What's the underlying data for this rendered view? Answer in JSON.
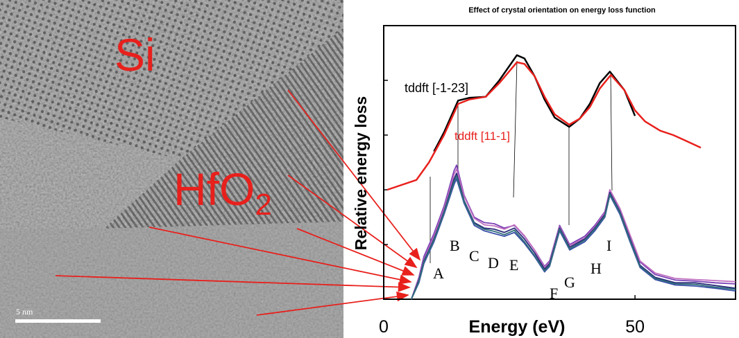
{
  "image": {
    "si_label": "Si",
    "hfo2_label": {
      "base": "HfO",
      "subscript": "2"
    },
    "scale_bar": "5 nm"
  },
  "chart_data": {
    "type": "line",
    "title": "Effect of crystal orientation on energy loss function",
    "x_label": "Energy (eV)",
    "y_label": "Relative energy loss",
    "xlim": [
      0,
      70
    ],
    "xticks": [
      0,
      50
    ],
    "ylim": [
      0,
      5
    ],
    "yticks": [
      1,
      2,
      3,
      4
    ],
    "annotations": [
      "A",
      "B",
      "C",
      "D",
      "E",
      "F",
      "G",
      "H",
      "I"
    ],
    "series": [
      {
        "name": "tddft [-1-23]",
        "color": "#000000",
        "x": [
          10,
          12,
          14.8,
          17,
          20.3,
          23,
          26.5,
          28,
          30,
          32,
          34,
          36.9,
          39,
          41,
          43,
          45,
          47.9,
          50
        ],
        "values": [
          2.7,
          3.05,
          3.63,
          3.68,
          3.7,
          4.0,
          4.46,
          4.4,
          4.08,
          3.65,
          3.32,
          3.15,
          3.3,
          3.57,
          3.95,
          4.16,
          3.82,
          3.35
        ]
      },
      {
        "name": "tddft [11-1]",
        "color": "#e8201c",
        "x": [
          0.7,
          6.5,
          9,
          12,
          14.8,
          17,
          20.3,
          23,
          26.5,
          28,
          30,
          32,
          34,
          36.9,
          39,
          41,
          43,
          45.2,
          47.9,
          50,
          52,
          55,
          57.6,
          60,
          63.1
        ],
        "values": [
          2.0,
          2.18,
          2.5,
          3.0,
          3.57,
          3.65,
          3.7,
          3.95,
          4.33,
          4.3,
          4.08,
          3.7,
          3.38,
          3.19,
          3.3,
          3.51,
          3.85,
          4.1,
          3.82,
          3.45,
          3.25,
          3.08,
          3.0,
          2.9,
          2.77
        ]
      },
      {
        "color": "#7a3fb5",
        "x": [
          5.5,
          7,
          8,
          10,
          12,
          14,
          14.5,
          16,
          18,
          20,
          22,
          24,
          26,
          28,
          30,
          32,
          33,
          35,
          37,
          40,
          42,
          44,
          45,
          47,
          49,
          51,
          54,
          58,
          62,
          66,
          70
        ],
        "values": [
          0,
          0.4,
          0.78,
          1.2,
          1.7,
          2.35,
          2.45,
          1.9,
          1.5,
          1.4,
          1.38,
          1.3,
          1.35,
          1.15,
          0.9,
          0.6,
          0.7,
          1.35,
          1.0,
          1.15,
          1.35,
          1.6,
          2.0,
          1.65,
          1.15,
          0.68,
          0.45,
          0.35,
          0.33,
          0.3,
          0.28
        ]
      },
      {
        "color": "#3b4fa8",
        "x": [
          5.5,
          7,
          8,
          10,
          12,
          14,
          14.5,
          16,
          18,
          20,
          22,
          24,
          26,
          28,
          30,
          32,
          33,
          35,
          37,
          40,
          42,
          44,
          45,
          47,
          49,
          51,
          54,
          58,
          62,
          66,
          70
        ],
        "values": [
          0,
          0.3,
          0.65,
          1.05,
          1.55,
          2.1,
          2.2,
          1.75,
          1.35,
          1.25,
          1.2,
          1.15,
          1.22,
          1.02,
          0.78,
          0.5,
          0.6,
          1.25,
          0.9,
          1.05,
          1.25,
          1.5,
          1.9,
          1.55,
          1.05,
          0.58,
          0.36,
          0.26,
          0.24,
          0.2,
          0.15
        ]
      },
      {
        "color": "#c070c0",
        "x": [
          5.5,
          7,
          8,
          10,
          12,
          14,
          14.5,
          16,
          18,
          20,
          22,
          24,
          26,
          28,
          30,
          32,
          33,
          35,
          37,
          40,
          42,
          44,
          45,
          47,
          49,
          51,
          54,
          58,
          62,
          66,
          70
        ],
        "values": [
          0,
          0.38,
          0.72,
          1.15,
          1.65,
          2.28,
          2.38,
          1.88,
          1.48,
          1.36,
          1.34,
          1.28,
          1.36,
          1.16,
          0.9,
          0.58,
          0.68,
          1.32,
          0.98,
          1.12,
          1.32,
          1.58,
          2.0,
          1.66,
          1.18,
          0.7,
          0.48,
          0.38,
          0.36,
          0.34,
          0.32
        ]
      },
      {
        "color": "#2a2a7a",
        "x": [
          5.5,
          7,
          8,
          10,
          12,
          14,
          14.5,
          16,
          18,
          20,
          22,
          24,
          26,
          28,
          30,
          32,
          33,
          35,
          37,
          40,
          42,
          44,
          45,
          47,
          49,
          51,
          54,
          58,
          62,
          66,
          70
        ],
        "values": [
          0,
          0.35,
          0.7,
          1.1,
          1.6,
          2.2,
          2.3,
          1.8,
          1.4,
          1.3,
          1.28,
          1.22,
          1.3,
          1.1,
          0.85,
          0.55,
          0.65,
          1.3,
          0.95,
          1.1,
          1.3,
          1.55,
          1.95,
          1.6,
          1.1,
          0.62,
          0.4,
          0.3,
          0.3,
          0.25,
          0.2
        ]
      },
      {
        "color": "#2f6f7a",
        "x": [
          5.5,
          7,
          8,
          10,
          12,
          14,
          14.5,
          16,
          18,
          20,
          22,
          24,
          26,
          28,
          30,
          32,
          33,
          35,
          37,
          40,
          42,
          44,
          45,
          47,
          49,
          51,
          54,
          58,
          62,
          66,
          70
        ],
        "values": [
          0,
          0.32,
          0.68,
          1.08,
          1.58,
          2.15,
          2.25,
          1.78,
          1.38,
          1.28,
          1.24,
          1.18,
          1.26,
          1.05,
          0.8,
          0.52,
          0.62,
          1.28,
          0.92,
          1.08,
          1.28,
          1.52,
          1.92,
          1.58,
          1.08,
          0.6,
          0.38,
          0.28,
          0.27,
          0.22,
          0.18
        ]
      }
    ]
  }
}
